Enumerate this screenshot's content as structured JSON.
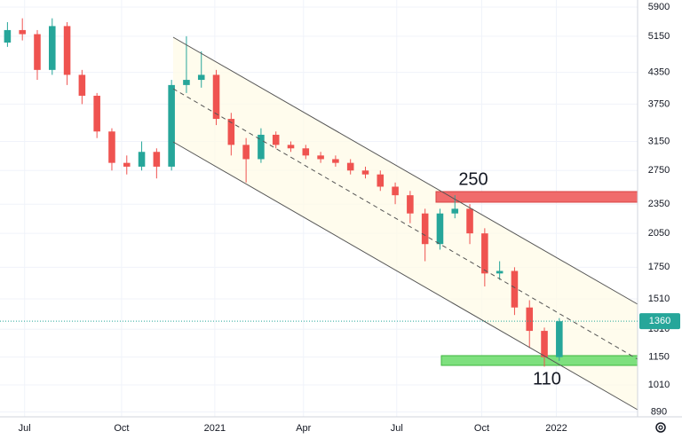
{
  "chart_data": {
    "type": "candlestick",
    "x": [
      1,
      3,
      5,
      7,
      9,
      11,
      13,
      15,
      17,
      19,
      21,
      23,
      25,
      27,
      29,
      31,
      33,
      35,
      37,
      39,
      41,
      43,
      45,
      47,
      49,
      51,
      53,
      55,
      57,
      59,
      61,
      63,
      65,
      67,
      69,
      71,
      73,
      75
    ],
    "open": [
      5000,
      5300,
      5200,
      4400,
      5400,
      4300,
      3900,
      3300,
      2850,
      2800,
      3000,
      2800,
      4100,
      4200,
      4300,
      3500,
      3100,
      2900,
      3250,
      3100,
      3050,
      2950,
      2900,
      2850,
      2750,
      2700,
      2550,
      2450,
      2250,
      1950,
      2250,
      2300,
      2050,
      1700,
      1720,
      1450,
      1300,
      1150
    ],
    "high": [
      5500,
      5600,
      5300,
      5600,
      5500,
      4400,
      3950,
      3350,
      2950,
      3150,
      3050,
      4200,
      5150,
      4800,
      4400,
      3600,
      3200,
      3350,
      3300,
      3150,
      3100,
      3000,
      2950,
      2900,
      2800,
      2750,
      2600,
      2500,
      2300,
      2300,
      2450,
      2350,
      2100,
      1800,
      1750,
      1500,
      1320,
      1380
    ],
    "low": [
      4900,
      5050,
      4200,
      4300,
      4100,
      3750,
      3200,
      2750,
      2700,
      2750,
      2650,
      2750,
      3950,
      4050,
      3400,
      2950,
      2600,
      2850,
      3050,
      3000,
      2900,
      2850,
      2800,
      2700,
      2650,
      2500,
      2350,
      2150,
      1800,
      1900,
      2200,
      1950,
      1600,
      1650,
      1400,
      1200,
      1100,
      1130
    ],
    "close": [
      5300,
      5200,
      4400,
      5400,
      4300,
      3900,
      3300,
      2850,
      2800,
      3000,
      2800,
      4100,
      4200,
      4300,
      3500,
      3100,
      2900,
      3250,
      3100,
      3050,
      2950,
      2900,
      2850,
      2750,
      2700,
      2550,
      2450,
      2250,
      1950,
      2250,
      2300,
      2050,
      1700,
      1720,
      1450,
      1300,
      1150,
      1360
    ],
    "up_color": "#26a69a",
    "down_color": "#ef5350",
    "xlim": [
      0,
      85.5
    ],
    "xticks": [
      {
        "value": 3.3,
        "label": "Jul"
      },
      {
        "value": 16.3,
        "label": "Oct"
      },
      {
        "value": 28.8,
        "label": "2021"
      },
      {
        "value": 40.7,
        "label": "Apr"
      },
      {
        "value": 53.2,
        "label": "Jul"
      },
      {
        "value": 64.6,
        "label": "Oct"
      },
      {
        "value": 74.6,
        "label": "2022"
      }
    ],
    "ylim": [
      870,
      6100
    ],
    "yticks": [
      890,
      1010,
      1150,
      1310,
      1510,
      1750,
      2050,
      2350,
      2750,
      3150,
      3750,
      4350,
      5150,
      5900
    ],
    "log_y": true,
    "grid": true,
    "last_price": 1360,
    "annotations": [
      "250",
      "110"
    ]
  }
}
